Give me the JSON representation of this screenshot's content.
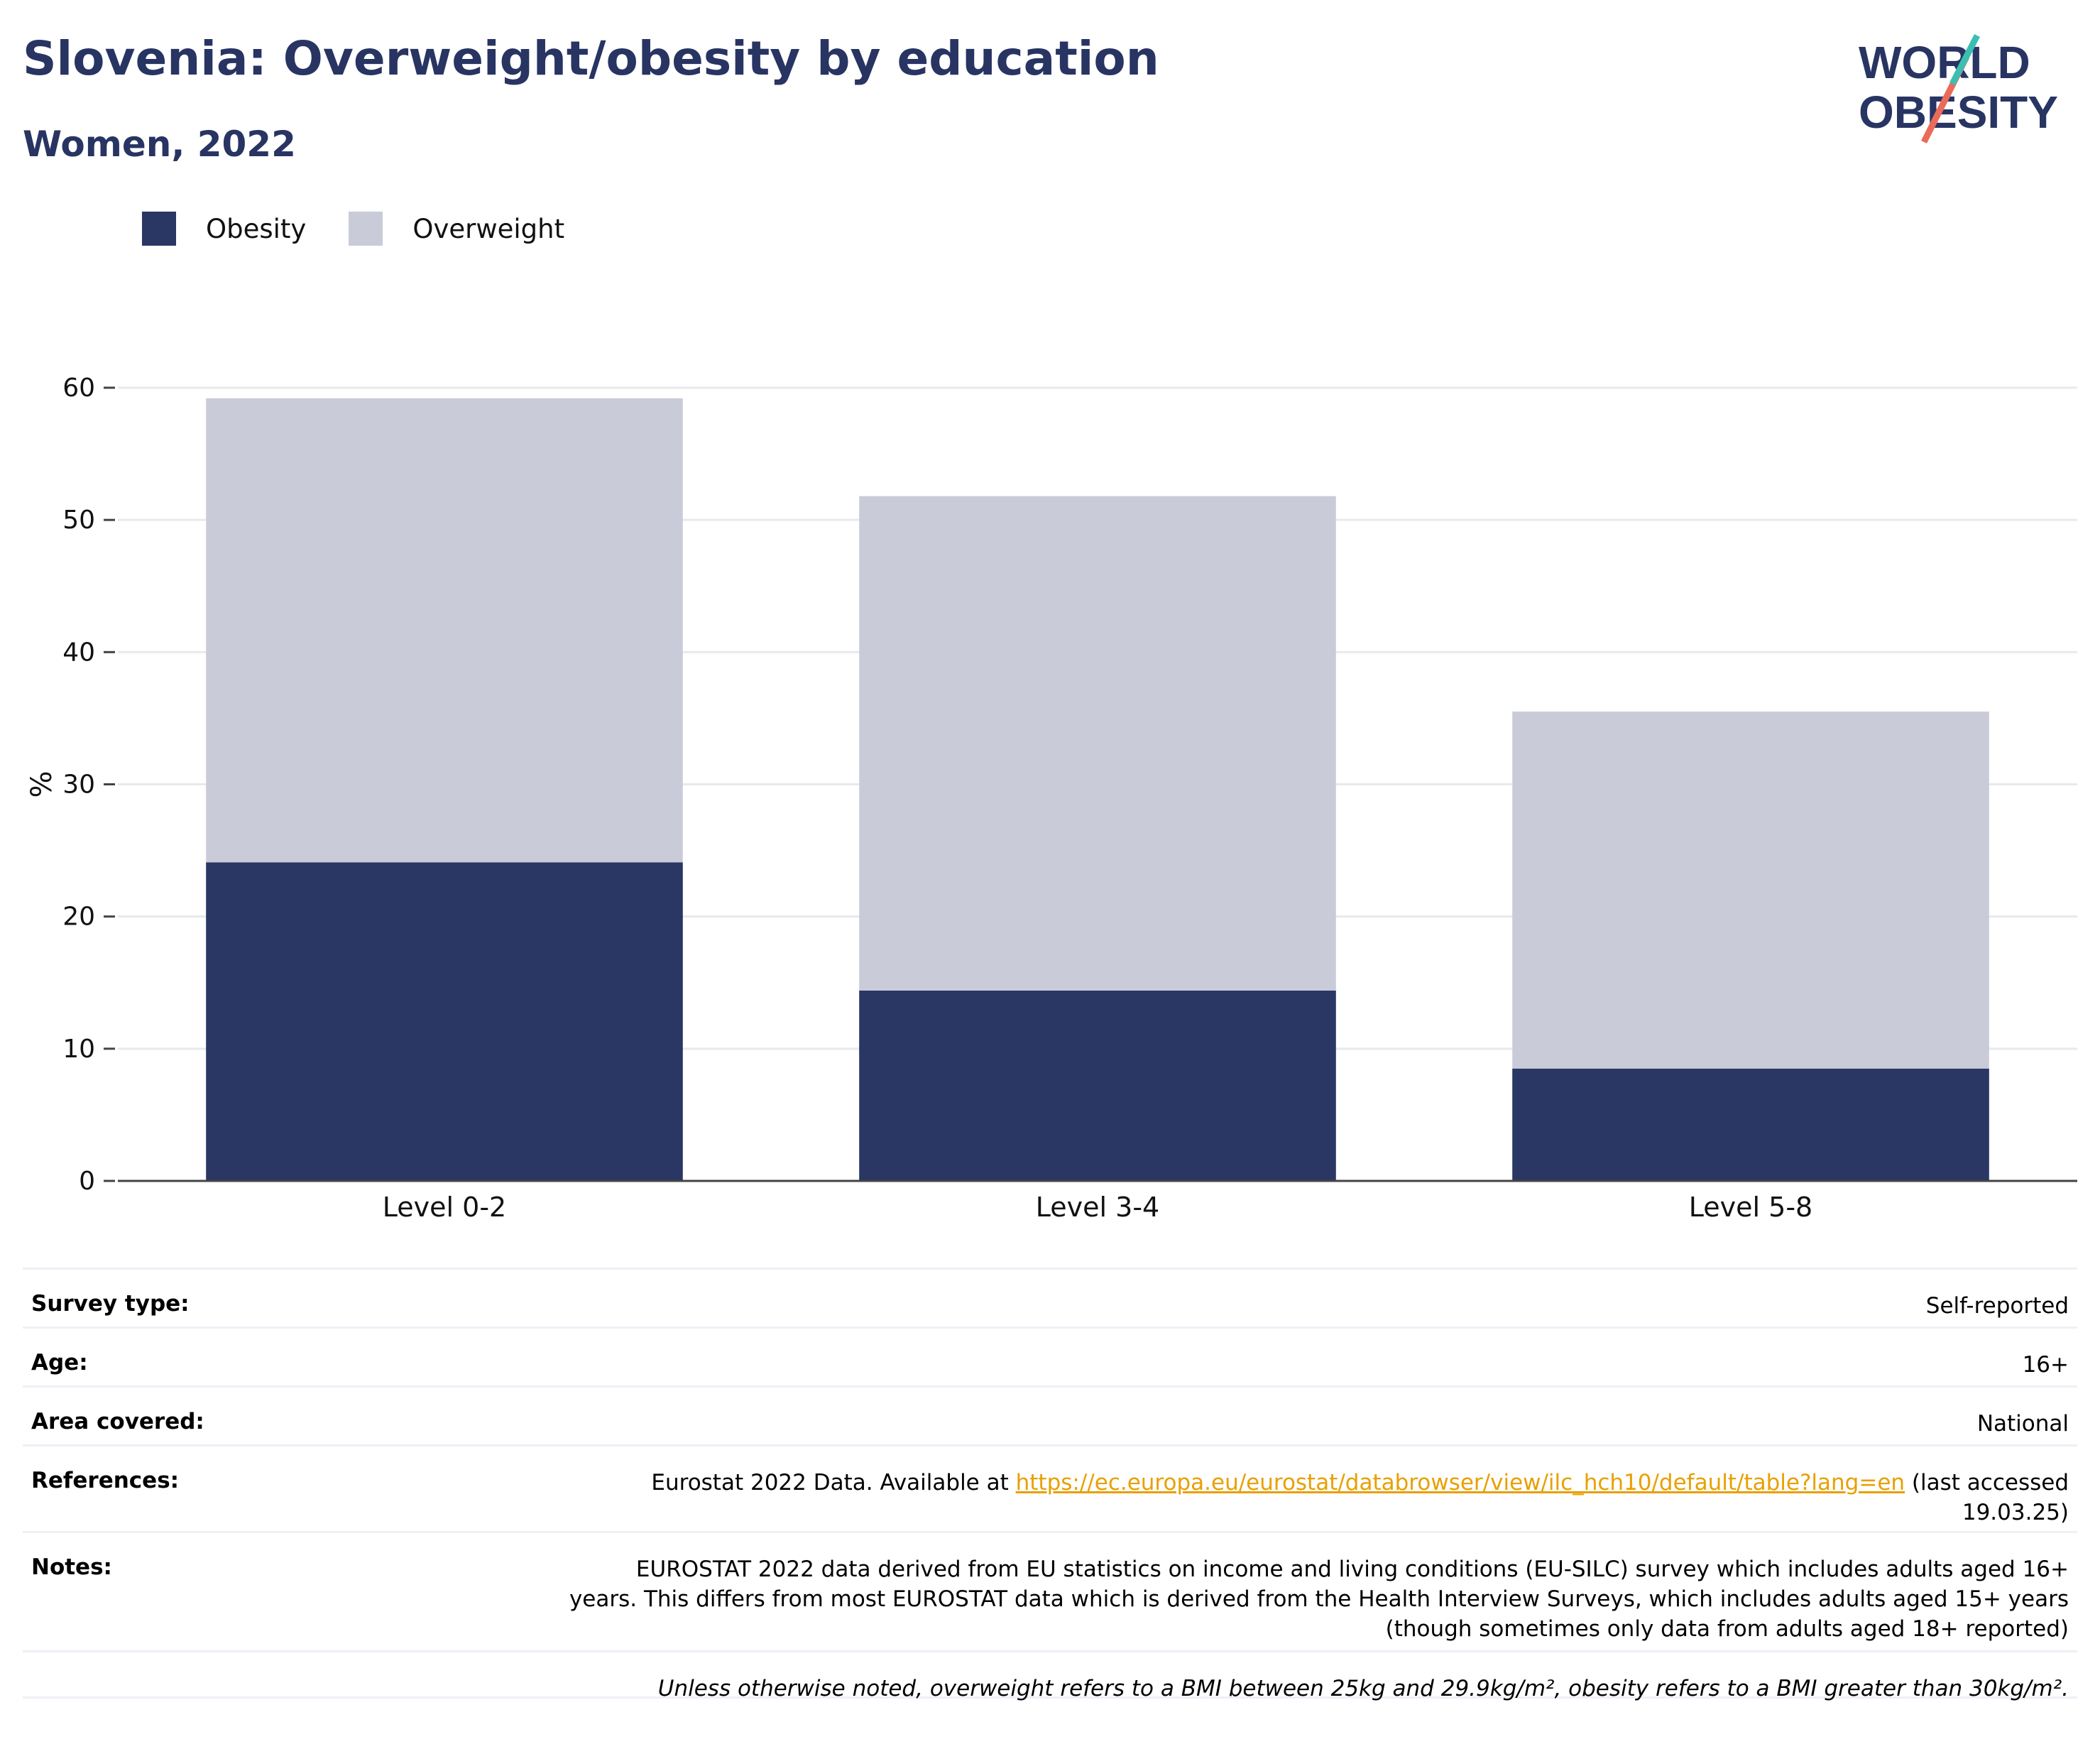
{
  "header": {
    "title": "Slovenia: Overweight/obesity by education",
    "subtitle": "Women, 2022",
    "logo_line1": "WORLD",
    "logo_line2": "OBESITY"
  },
  "colors": {
    "obesity": "#2a3663",
    "overweight": "#c9ccd8",
    "title": "#283462",
    "link": "#e8a000",
    "logo_teal": "#3bbfb1",
    "logo_coral": "#ea6b5a"
  },
  "legend": [
    {
      "label": "Obesity",
      "color": "#2a3663"
    },
    {
      "label": "Overweight",
      "color": "#c9ccd8"
    }
  ],
  "chart_data": {
    "type": "bar",
    "stacked": true,
    "categories": [
      "Level 0-2",
      "Level 3-4",
      "Level 5-8"
    ],
    "series": [
      {
        "name": "Obesity",
        "values": [
          24.1,
          14.4,
          8.5
        ],
        "color": "#2a3663"
      },
      {
        "name": "Overweight",
        "values": [
          35.1,
          37.4,
          27.0
        ],
        "color": "#c9ccd8"
      }
    ],
    "ylabel": "%",
    "ylim": [
      0,
      60
    ],
    "yticks": [
      0,
      10,
      20,
      30,
      40,
      50,
      60
    ],
    "grid": true,
    "legend_position": "top-left"
  },
  "meta": {
    "survey_label": "Survey type:",
    "survey_value": "Self-reported",
    "age_label": "Age:",
    "age_value": "16+",
    "area_label": "Area covered:",
    "area_value": "National",
    "references_label": "References:",
    "references_prefix": "Eurostat 2022 Data. Available at",
    "references_link": "https://ec.europa.eu/eurostat/databrowser/view/ilc_hch10/default/table?lang=en",
    "references_suffix_1": "(last accessed",
    "references_suffix_2": "19.03.25)",
    "notes_label": "Notes:",
    "notes_line1": "EUROSTAT 2022 data derived from EU statistics on income and living conditions (EU-SILC) survey which includes adults aged 16+",
    "notes_line2": "years. This differs from most EUROSTAT data which is derived from the Health Interview Surveys, which includes adults aged 15+ years",
    "notes_line3": "(though sometimes only data from adults aged 18+ reported)",
    "definition": "Unless otherwise noted, overweight refers to a BMI between 25kg and 29.9kg/m², obesity refers to a BMI greater than 30kg/m²."
  }
}
